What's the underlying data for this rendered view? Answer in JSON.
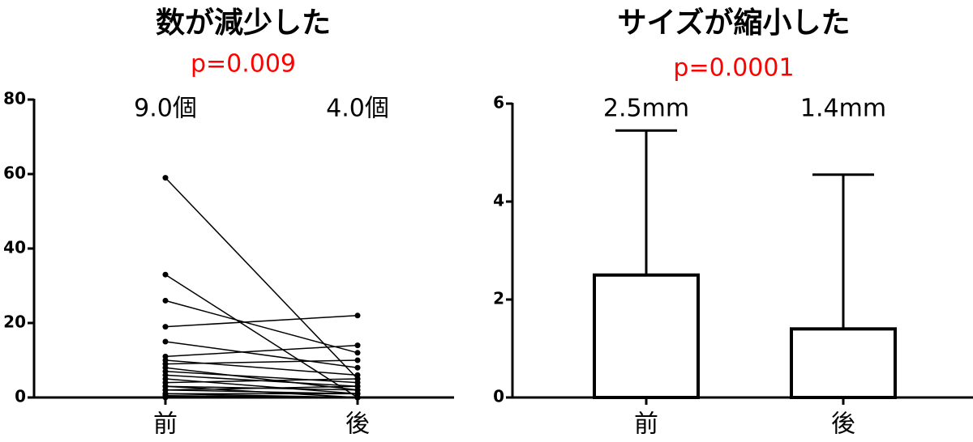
{
  "chart_data": [
    {
      "type": "paired",
      "title": "数が減少した",
      "subtitle": "p=0.009",
      "subtitle_color": "#ff0000",
      "categories": [
        "前",
        "後"
      ],
      "annotations": [
        "9.0個",
        "4.0個"
      ],
      "color": "#000000",
      "pairs": [
        [
          59,
          5
        ],
        [
          33,
          0
        ],
        [
          26,
          12
        ],
        [
          19,
          22
        ],
        [
          15,
          8
        ],
        [
          11,
          14
        ],
        [
          10,
          6
        ],
        [
          9,
          10
        ],
        [
          8,
          2
        ],
        [
          7,
          4
        ],
        [
          6,
          3
        ],
        [
          5,
          1
        ],
        [
          4,
          5
        ],
        [
          3,
          2
        ],
        [
          3,
          0
        ],
        [
          2,
          1
        ],
        [
          2,
          3
        ],
        [
          1,
          0
        ],
        [
          1,
          1
        ],
        [
          0.5,
          0
        ],
        [
          0,
          0
        ]
      ],
      "ylim": [
        0,
        80
      ],
      "yticks": [
        0,
        20,
        40,
        60,
        80
      ]
    },
    {
      "type": "bar",
      "title": "サイズが縮小した",
      "subtitle": "p=0.0001",
      "subtitle_color": "#ff0000",
      "categories": [
        "前",
        "後"
      ],
      "values": [
        2.5,
        1.4
      ],
      "value_labels": [
        "2.5mm",
        "1.4mm"
      ],
      "errors": [
        2.95,
        3.15
      ],
      "color": "#ffffff",
      "ylim": [
        0,
        6
      ],
      "yticks": [
        0,
        2,
        4,
        6
      ]
    }
  ]
}
